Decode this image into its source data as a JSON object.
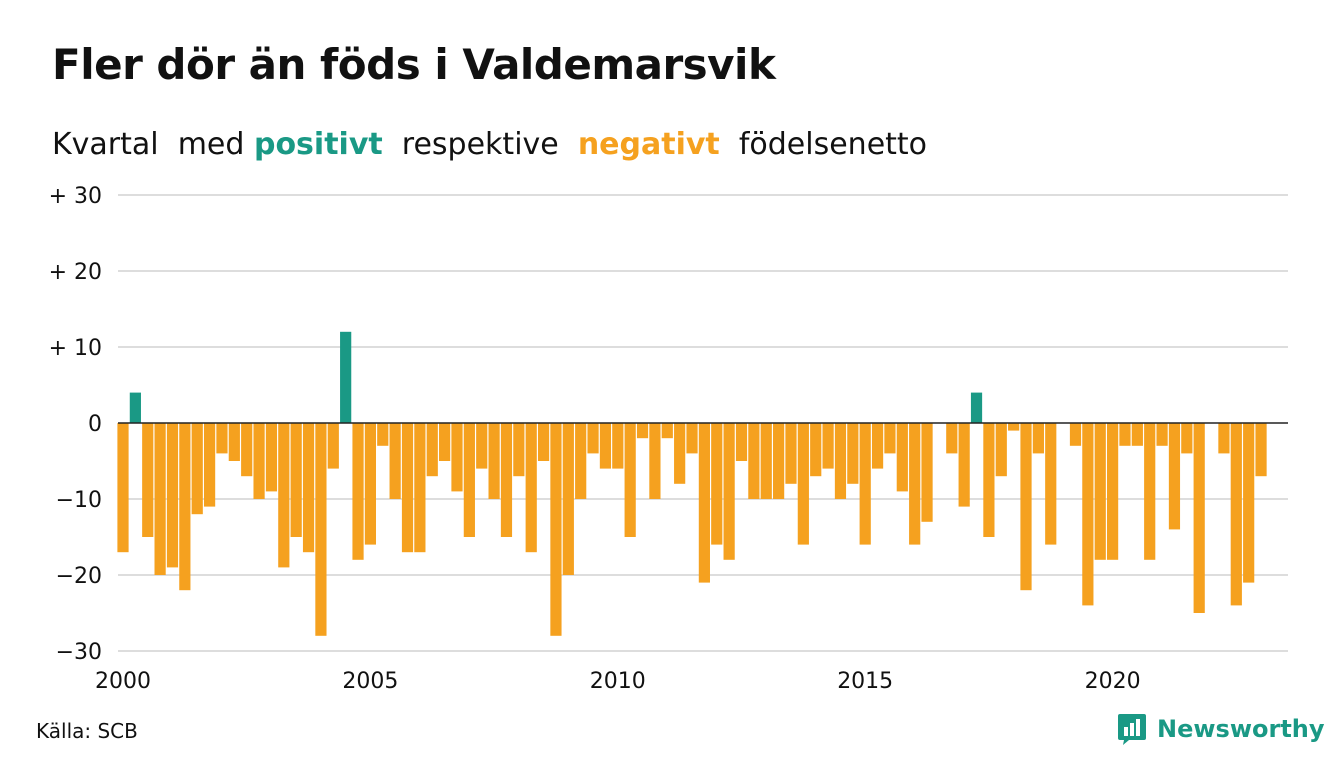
{
  "title": "Fler dör än föds i Valdemarsvik",
  "subtitle": {
    "part1": "Kvartal  med ",
    "positive_word": "positivt",
    "part2": "  respektive  ",
    "negative_word": "negativt",
    "part3": "  födelsenetto"
  },
  "source": "Källa: SCB",
  "brand": "Newsworthy",
  "brand_icon": "newsworthy-logo-icon",
  "colors": {
    "positive": "#1a9985",
    "negative": "#f5a11f",
    "grid": "#dddddd",
    "zero_line": "#222222"
  },
  "chart_data": {
    "type": "bar",
    "x_start": "2000 Q1",
    "xticks": [
      "2000",
      "2005",
      "2010",
      "2015",
      "2020"
    ],
    "yticks": [
      "+ 30",
      "+ 20",
      "+ 10",
      "0",
      "−10",
      "−20",
      "−30"
    ],
    "ylim": [
      -30,
      30
    ],
    "grid": true,
    "values": [
      -17,
      4,
      -15,
      -20,
      -19,
      -22,
      -12,
      -11,
      -4,
      -5,
      -7,
      -10,
      -9,
      -19,
      -15,
      -17,
      -28,
      -6,
      12,
      -18,
      -16,
      -3,
      -10,
      -17,
      -17,
      -7,
      -5,
      -9,
      -15,
      -6,
      -10,
      -15,
      -7,
      -17,
      -5,
      -28,
      -20,
      -10,
      -4,
      -6,
      -6,
      -15,
      -2,
      -10,
      -2,
      -8,
      -4,
      -21,
      -16,
      -18,
      -5,
      -10,
      -10,
      -10,
      -8,
      -16,
      -7,
      -6,
      -10,
      -8,
      -16,
      -6,
      -4,
      -9,
      -16,
      -13,
      0,
      -4,
      -11,
      4,
      -15,
      -7,
      -1,
      -22,
      -4,
      -16,
      0,
      -3,
      -24,
      -18,
      -18,
      -3,
      -3,
      -18,
      -3,
      -14,
      -4,
      -25,
      0,
      -4,
      -24,
      -21,
      -7
    ]
  }
}
